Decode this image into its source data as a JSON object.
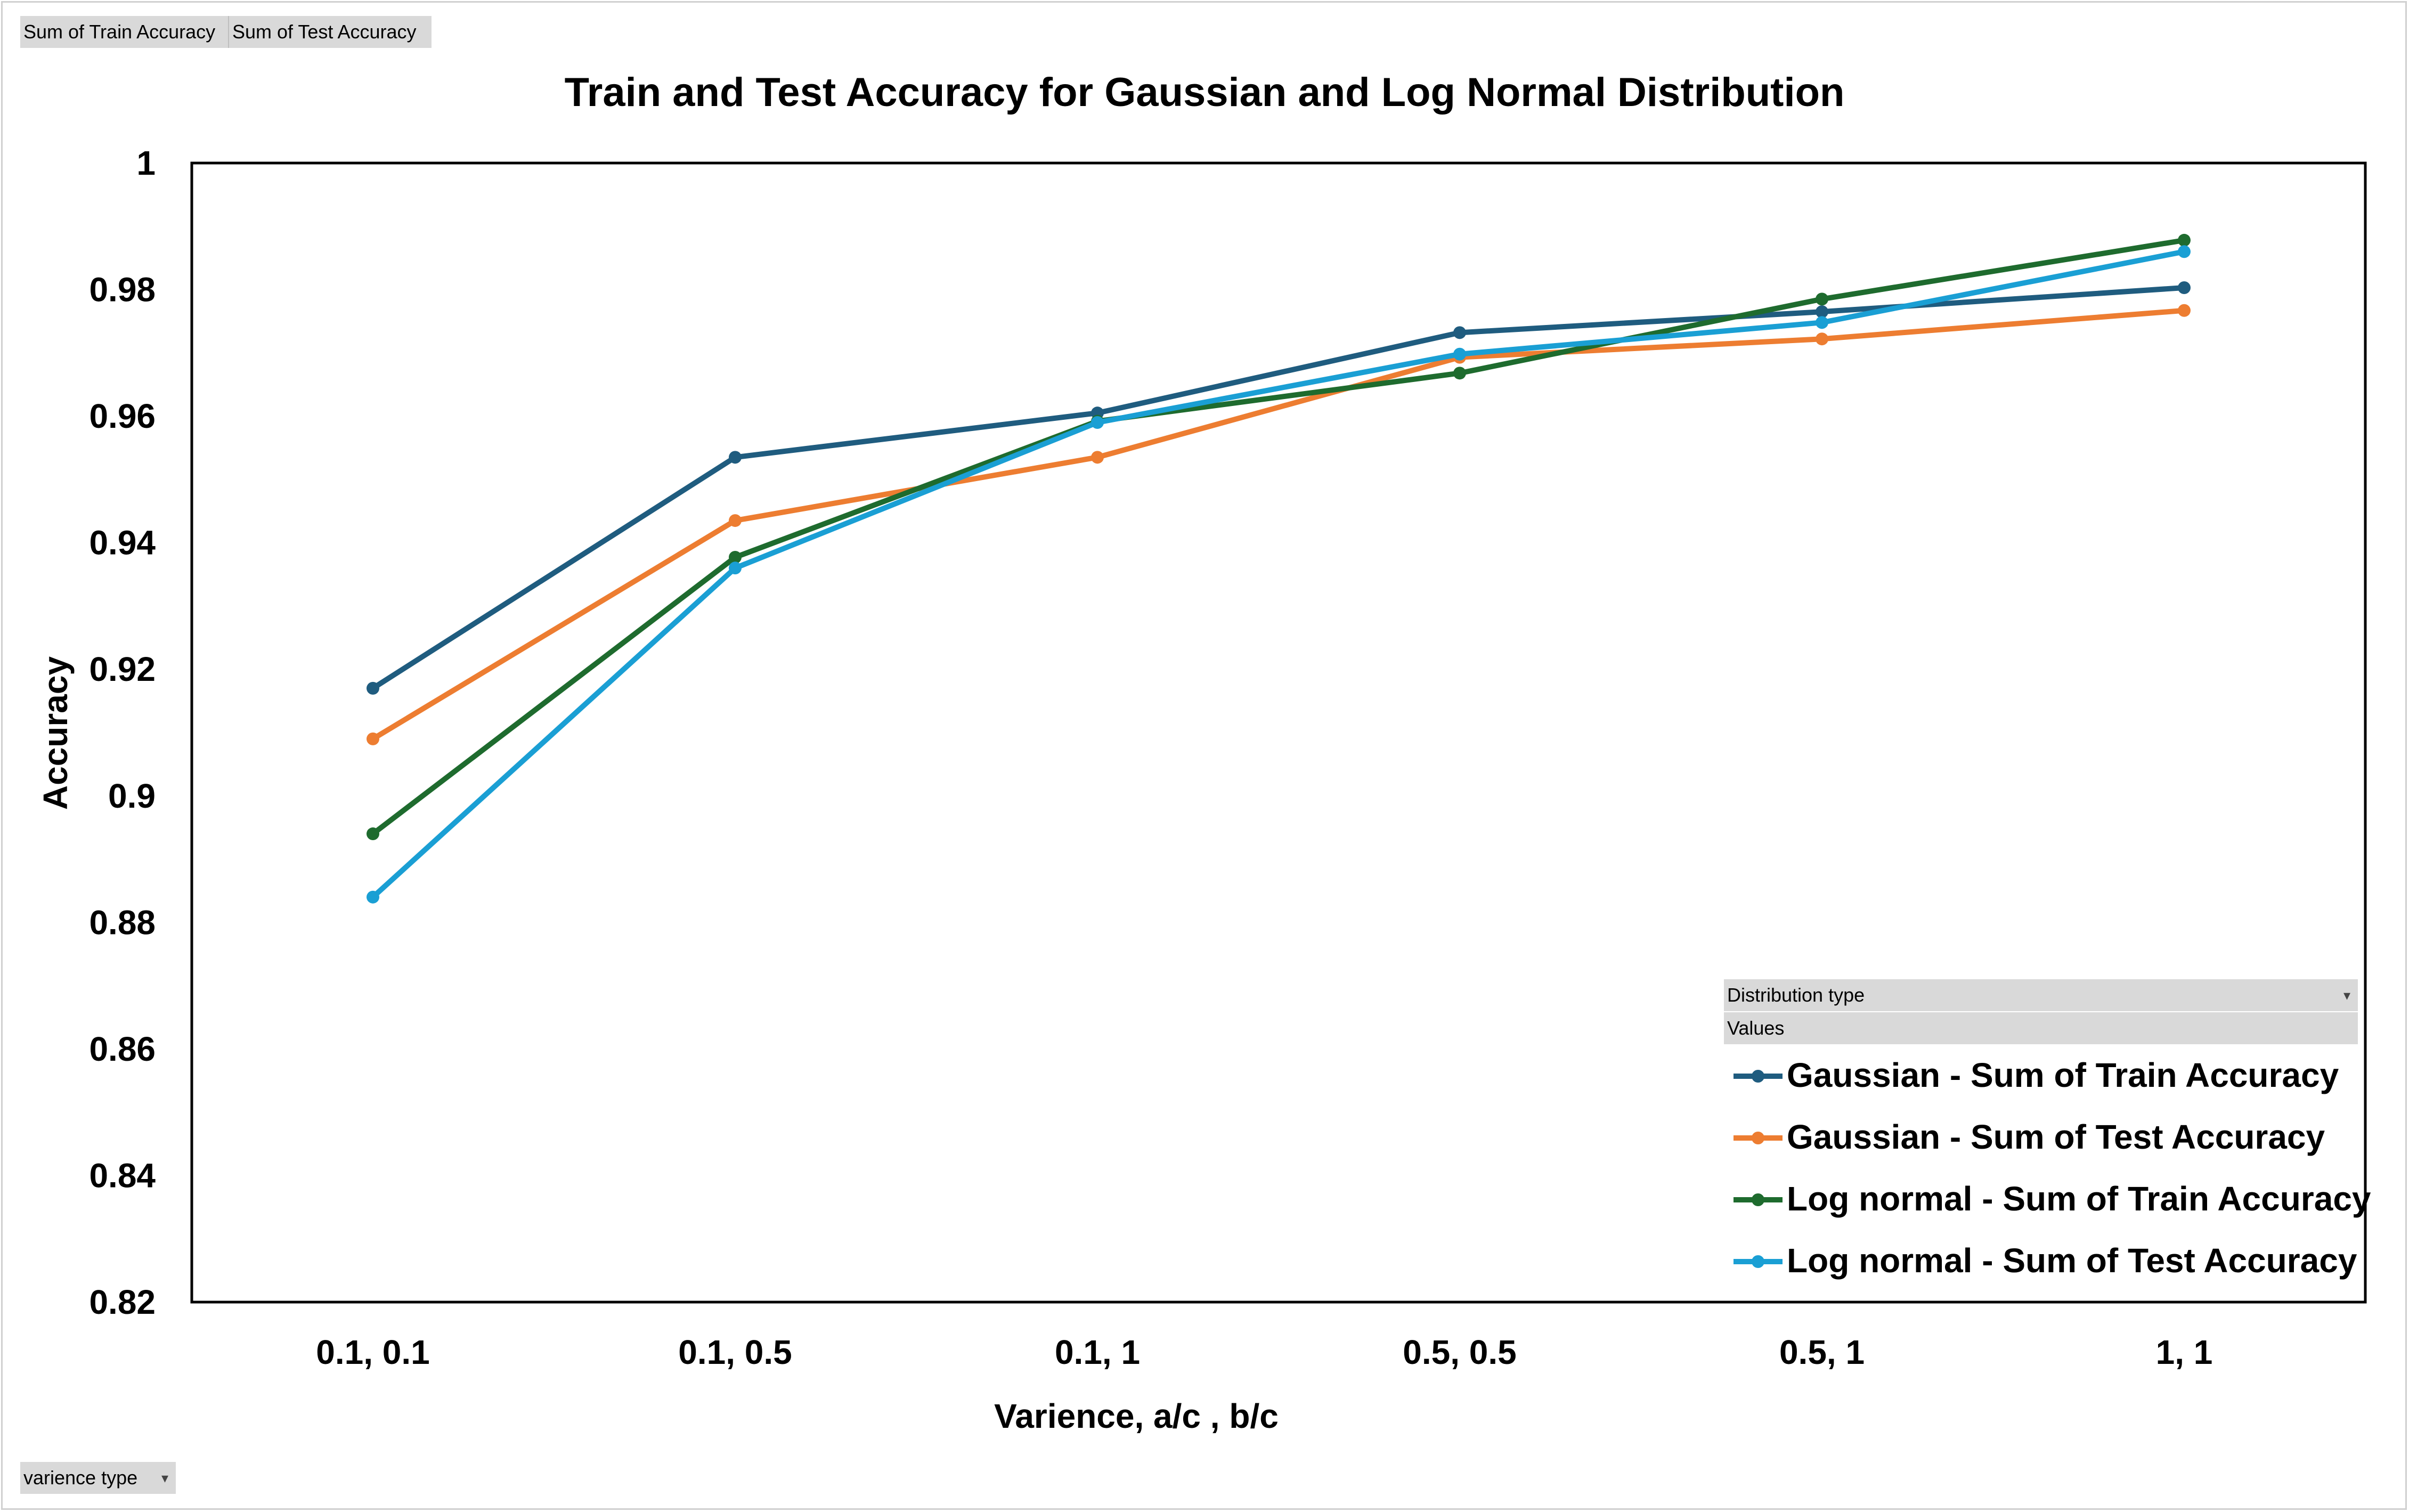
{
  "pivot_buttons": {
    "value_fields": [
      "Sum of Train Accuracy",
      "Sum of Test Accuracy"
    ],
    "axis_field": "varience type",
    "legend_field": "Distribution type",
    "values_label": "Values"
  },
  "chart_data": {
    "type": "line",
    "title": "Train and Test Accuracy  for Gaussian and Log Normal Distribution",
    "xlabel": "Varience, a/c , b/c",
    "ylabel": "Accuracy",
    "categories": [
      "0.1, 0.1",
      "0.1, 0.5",
      "0.1, 1",
      "0.5, 0.5",
      "0.5, 1",
      "1, 1"
    ],
    "ylim": [
      0.82,
      1
    ],
    "yticks": [
      0.82,
      0.84,
      0.86,
      0.88,
      0.9,
      0.92,
      0.94,
      0.96,
      0.98,
      1
    ],
    "ytick_labels": [
      "0.82",
      "0.84",
      "0.86",
      "0.88",
      "0.9",
      "0.92",
      "0.94",
      "0.96",
      "0.98",
      "1"
    ],
    "grid": false,
    "legend_position": "bottom-right",
    "series": [
      {
        "name": "Gaussian - Sum of Train Accuracy",
        "color": "#1f5c7f",
        "values": [
          0.917,
          0.9535,
          0.9605,
          0.9732,
          0.9765,
          0.9803
        ]
      },
      {
        "name": "Gaussian - Sum of Test Accuracy",
        "color": "#ed7d31",
        "values": [
          0.909,
          0.9435,
          0.9535,
          0.9693,
          0.9722,
          0.9767
        ]
      },
      {
        "name": "Log normal - Sum of Train Accuracy",
        "color": "#1e6b2e",
        "values": [
          0.894,
          0.9377,
          0.9592,
          0.9668,
          0.9785,
          0.9878
        ]
      },
      {
        "name": "Log normal - Sum of Test Accuracy",
        "color": "#1a9fd4",
        "values": [
          0.884,
          0.936,
          0.959,
          0.9698,
          0.9748,
          0.986
        ]
      }
    ]
  }
}
